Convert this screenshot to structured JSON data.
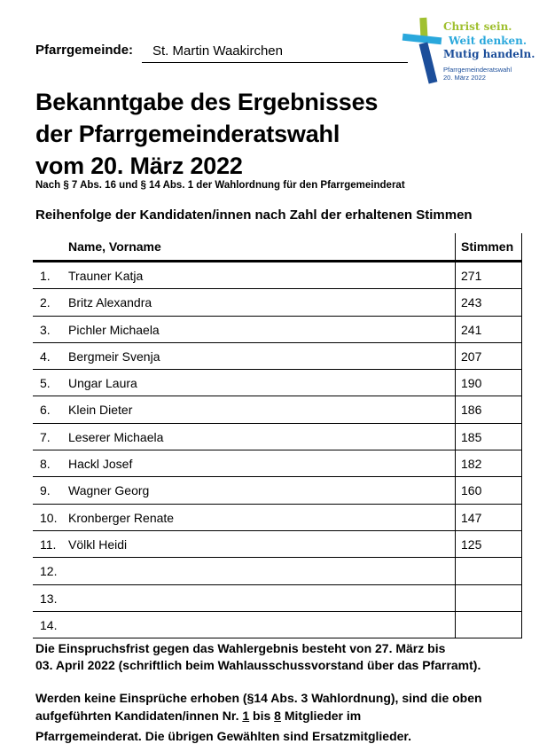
{
  "header": {
    "parish_label": "Pfarrgemeinde",
    "parish_value": "St. Martin Waakirchen",
    "logo": {
      "line1": "Christ sein.",
      "line2": "Weit denken.",
      "line3": "Mutig handeln.",
      "line4": "Pfarrgemeinderatswahl",
      "line5": "20. März 2022",
      "colors": {
        "green": "#a0c030",
        "light_blue": "#2aa8dc",
        "dark_blue": "#1c4e9a"
      }
    }
  },
  "title": {
    "line1": "Bekanntgabe des Ergebnisses",
    "line2": "der Pfarrgemeinderatswahl",
    "line3": "vom 20. März 2022"
  },
  "subtitle": "Nach § 7 Abs. 16 und § 14 Abs. 1 der Wahlordnung für den Pfarrgemeinderat",
  "order_heading": "Reihenfolge der Kandidaten/innen nach Zahl der erhaltenen Stimmen",
  "table": {
    "headers": {
      "name": "Name, Vorname",
      "votes": "Stimmen"
    },
    "rows": [
      {
        "no": "1.",
        "name": "Trauner Katja",
        "votes": "271"
      },
      {
        "no": "2.",
        "name": "Britz Alexandra",
        "votes": "243"
      },
      {
        "no": "3.",
        "name": "Pichler Michaela",
        "votes": "241"
      },
      {
        "no": "4.",
        "name": "Bergmeir Svenja",
        "votes": "207"
      },
      {
        "no": "5.",
        "name": "Ungar Laura",
        "votes": "190"
      },
      {
        "no": "6.",
        "name": "Klein Dieter",
        "votes": "186"
      },
      {
        "no": "7.",
        "name": "Leserer Michaela",
        "votes": "185"
      },
      {
        "no": "8.",
        "name": "Hackl Josef",
        "votes": "182"
      },
      {
        "no": "9.",
        "name": "Wagner Georg",
        "votes": "160"
      },
      {
        "no": "10.",
        "name": "Kronberger Renate",
        "votes": "147"
      },
      {
        "no": "11.",
        "name": "Völkl Heidi",
        "votes": "125"
      },
      {
        "no": "12.",
        "name": "",
        "votes": ""
      },
      {
        "no": "13.",
        "name": "",
        "votes": ""
      },
      {
        "no": "14.",
        "name": "",
        "votes": ""
      }
    ]
  },
  "notes": {
    "objection_line1": "Die Einspruchsfrist gegen das Wahlergebnis besteht von 27. März bis",
    "objection_line2": "03. April 2022 (schriftlich beim Wahlausschussvorstand über das Pfarramt).",
    "result_line1": "Werden keine Einsprüche erhoben (§14 Abs. 3 Wahlordnung), sind die oben",
    "result_line2a": "aufgeführten Kandidaten/innen Nr. ",
    "member_from": "1",
    "result_line2b": " bis ",
    "member_to": "8",
    "result_line2c": " Mitglieder im",
    "result_line3": "Pfarrgemeinderat. Die übrigen Gewählten sind Ersatzmitglieder."
  }
}
